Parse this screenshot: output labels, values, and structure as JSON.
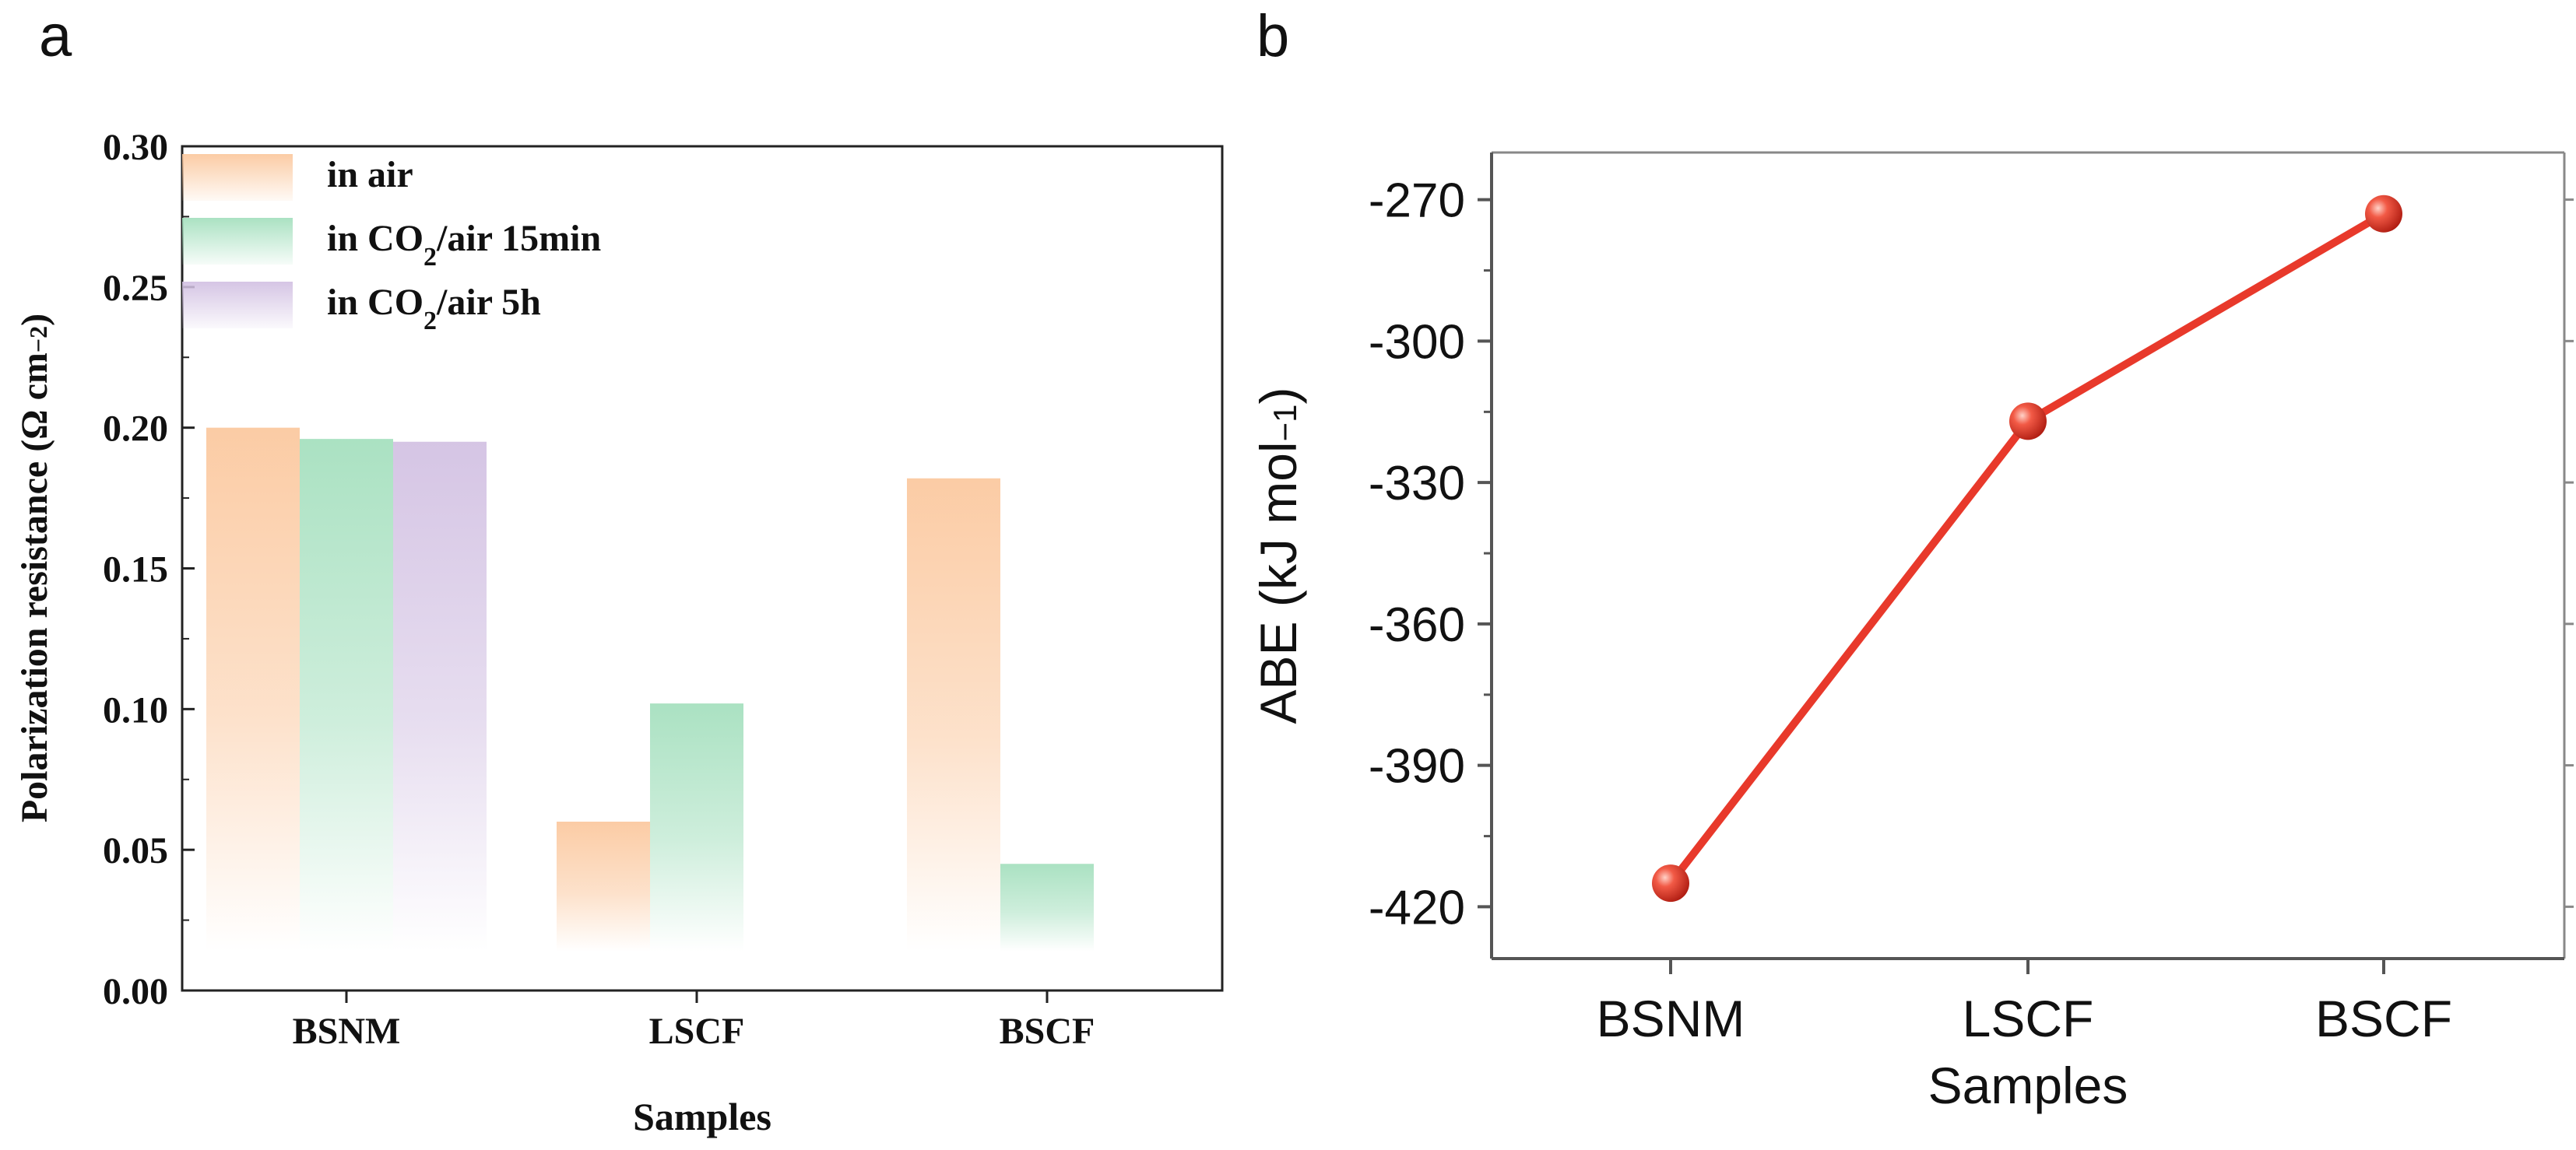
{
  "chart_data": [
    {
      "panel_label": "a",
      "type": "bar",
      "xlabel": "Samples",
      "ylabel": "Polarization resistance (Ω cm⁻²)",
      "ylim": [
        0,
        0.3
      ],
      "yticks": [
        "0.00",
        "0.05",
        "0.10",
        "0.15",
        "0.20",
        "0.25",
        "0.30"
      ],
      "categories": [
        "BSNM",
        "LSCF",
        "BSCF"
      ],
      "legend_position": "top-left",
      "series": [
        {
          "name": "in air",
          "color": "#fbc9a0",
          "values": [
            0.2,
            0.06,
            0.182
          ]
        },
        {
          "name": "in CO₂/air 15min",
          "color": "#a6e0bf",
          "values": [
            0.196,
            0.102,
            0.045
          ]
        },
        {
          "name": "in CO₂/air 5h",
          "color": "#d3c2e3",
          "values": [
            0.195,
            null,
            null
          ]
        }
      ]
    },
    {
      "panel_label": "b",
      "type": "line",
      "xlabel": "Samples",
      "ylabel": "ABE (kJ mol⁻¹)",
      "ylim": [
        -431,
        -260
      ],
      "yticks": [
        "-270",
        "-300",
        "-330",
        "-360",
        "-390",
        "-420"
      ],
      "categories": [
        "BSNM",
        "LSCF",
        "BSCF"
      ],
      "series": [
        {
          "name": "ABE",
          "color": "#e8392b",
          "values": [
            -415,
            -317,
            -273
          ]
        }
      ]
    }
  ]
}
